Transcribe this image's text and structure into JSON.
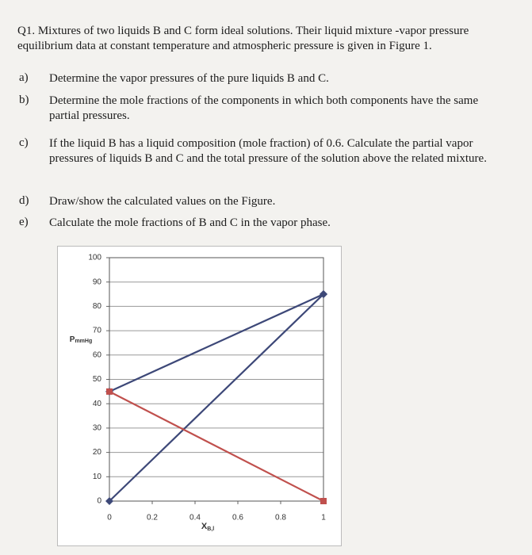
{
  "question": {
    "label": "Q1.",
    "text": "Mixtures of two liquids B and C form ideal solutions. Their liquid mixture -vapor pressure equilibrium data at constant temperature and atmospheric pressure is given in Figure 1."
  },
  "items": [
    {
      "letter": "a)",
      "text": "Determine the vapor pressures of the pure liquids B and C."
    },
    {
      "letter": "b)",
      "text": "Determine the mole fractions of the components in which both components have the same partial pressures."
    },
    {
      "letter": "c)",
      "text": "If the liquid B has a liquid composition (mole fraction) of 0.6. Calculate the partial vapor pressures of liquids B and C and the total pressure of the solution above the related mixture."
    },
    {
      "letter": "d)",
      "text": "Draw/show the calculated values on the Figure."
    },
    {
      "letter": "e)",
      "text": "Calculate the mole fractions of B and C in the vapor phase."
    }
  ],
  "chart_data": {
    "type": "line",
    "y_label": "P",
    "y_label_sub": "mmHg",
    "x_label": "X",
    "x_label_sub": "B,l",
    "x": [
      0,
      1
    ],
    "series": [
      {
        "color": "#3d4878",
        "marker": "diamond",
        "values": [
          45,
          85
        ]
      },
      {
        "color": "#3d4878",
        "marker": "diamond",
        "values": [
          0,
          85
        ]
      },
      {
        "color": "#c0504d",
        "marker": "square",
        "values": [
          45,
          0
        ]
      }
    ],
    "xlim": [
      0,
      1
    ],
    "xticks": [
      0,
      0.2,
      0.4,
      0.6,
      0.8,
      1
    ],
    "ylim": [
      0,
      100
    ],
    "yticks": [
      0,
      10,
      20,
      30,
      40,
      50,
      60,
      70,
      80,
      90,
      100
    ],
    "grid": true
  }
}
